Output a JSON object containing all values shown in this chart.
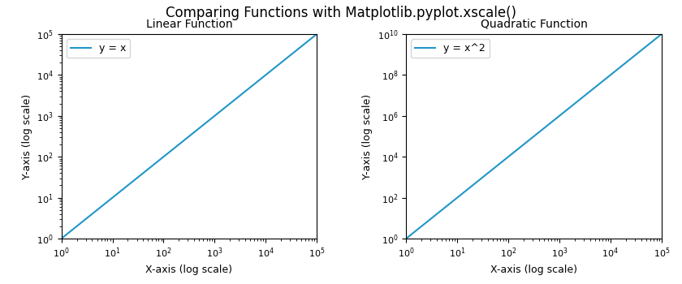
{
  "title": "Comparing Functions with Matplotlib.pyplot.xscale()",
  "subplot1_title": "Linear Function",
  "subplot2_title": "Quadratic Function",
  "xlabel": "X-axis (log scale)",
  "ylabel": "Y-axis (log scale)",
  "legend1": "y = x",
  "legend2": "y = x^2",
  "num_points": 500,
  "line_color": "#2196c8",
  "line_width": 1.5,
  "title_fontsize": 12,
  "subplot_title_fontsize": 10,
  "axis_label_fontsize": 9,
  "tick_fontsize": 8,
  "legend_fontsize": 9,
  "fig_width": 8.4,
  "fig_height": 3.5,
  "dpi": 100
}
